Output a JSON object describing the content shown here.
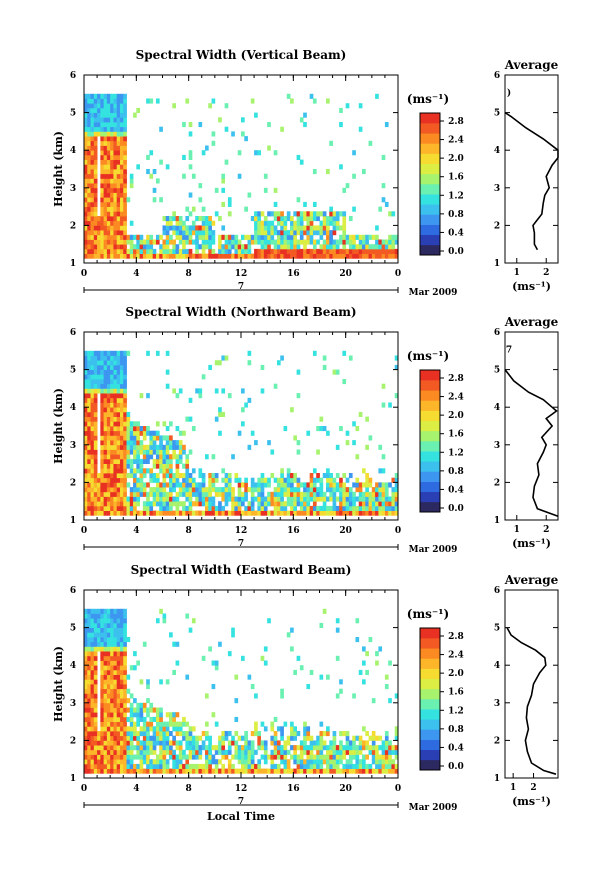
{
  "colorbar": {
    "unit": "(ms⁻¹)",
    "ticks": [
      "2.8",
      "2.4",
      "2.0",
      "1.6",
      "1.2",
      "0.8",
      "0.4",
      "0.0"
    ],
    "colors": [
      "#2c2860",
      "#2b3fb5",
      "#2f6be0",
      "#3d97f0",
      "#3cc0ee",
      "#34e2e0",
      "#6af0b0",
      "#a8f36e",
      "#dcee44",
      "#f6dc30",
      "#fdb52a",
      "#fb8a22",
      "#f35a23",
      "#e83023"
    ]
  },
  "x_axis": {
    "tick_labels": [
      "0",
      "4",
      "8",
      "12",
      "16",
      "20",
      "0"
    ],
    "date_label": "7",
    "month_label": "Mar 2009",
    "xlabel": "Local Time"
  },
  "chart_data": [
    {
      "type": "heatmap",
      "title": "Spectral Width (Vertical Beam)",
      "ylabel": "Height (km)",
      "x_range_hours": [
        0,
        24
      ],
      "ylim": [
        1,
        6
      ],
      "yticks": [
        "1",
        "2",
        "3",
        "4",
        "5",
        "6"
      ],
      "value_range": [
        0.0,
        2.8
      ],
      "avg_profile": {
        "title": "Average",
        "xlabel": "(ms⁻¹)",
        "xtick_labels": [
          "1",
          "2"
        ],
        "xlim": [
          0.6,
          2.4
        ],
        "top_marker": ")",
        "height": [
          1.35,
          1.5,
          1.8,
          2.0,
          2.1,
          2.3,
          2.6,
          2.8,
          3.0,
          3.3,
          3.6,
          3.8,
          4.0,
          4.3,
          4.6,
          4.9,
          5.0
        ],
        "width": [
          1.7,
          1.6,
          1.6,
          1.55,
          1.65,
          1.85,
          1.9,
          1.95,
          2.1,
          2.0,
          2.2,
          2.45,
          2.4,
          1.9,
          1.3,
          0.8,
          0.6
        ]
      }
    },
    {
      "type": "heatmap",
      "title": "Spectral Width (Northward Beam)",
      "ylabel": "Height (km)",
      "x_range_hours": [
        0,
        24
      ],
      "ylim": [
        1,
        6
      ],
      "yticks": [
        "1",
        "2",
        "3",
        "4",
        "5",
        "6"
      ],
      "value_range": [
        0.0,
        2.8
      ],
      "avg_profile": {
        "title": "Average",
        "xlabel": "(ms⁻¹)",
        "xtick_labels": [
          "1",
          "2"
        ],
        "xlim": [
          0.6,
          2.4
        ],
        "top_marker": "7",
        "height": [
          1.1,
          1.3,
          1.6,
          1.9,
          2.2,
          2.5,
          2.8,
          3.0,
          3.2,
          3.5,
          3.7,
          3.9,
          4.0,
          4.2,
          4.4,
          4.7,
          5.0
        ],
        "width": [
          2.4,
          1.7,
          1.55,
          1.6,
          1.75,
          1.7,
          1.9,
          2.0,
          1.85,
          2.2,
          2.0,
          2.35,
          2.2,
          1.9,
          1.4,
          0.9,
          0.6
        ]
      }
    },
    {
      "type": "heatmap",
      "title": "Spectral Width (Eastward Beam)",
      "ylabel": "Height (km)",
      "x_range_hours": [
        0,
        24
      ],
      "ylim": [
        1,
        6
      ],
      "yticks": [
        "1",
        "2",
        "3",
        "4",
        "5",
        "6"
      ],
      "value_range": [
        0.0,
        2.8
      ],
      "avg_profile": {
        "title": "Average",
        "xlabel": "(ms⁻¹)",
        "xtick_labels": [
          "1",
          "2"
        ],
        "xlim": [
          0.6,
          3.2
        ],
        "top_marker": "",
        "height": [
          1.1,
          1.2,
          1.4,
          1.7,
          2.0,
          2.3,
          2.6,
          2.9,
          3.2,
          3.5,
          3.8,
          4.0,
          4.2,
          4.4,
          4.6,
          4.8,
          5.0
        ],
        "width": [
          3.1,
          2.5,
          1.9,
          1.7,
          1.6,
          1.75,
          1.65,
          1.7,
          1.9,
          2.0,
          2.3,
          2.6,
          2.55,
          2.1,
          1.4,
          0.9,
          0.7
        ]
      }
    }
  ]
}
